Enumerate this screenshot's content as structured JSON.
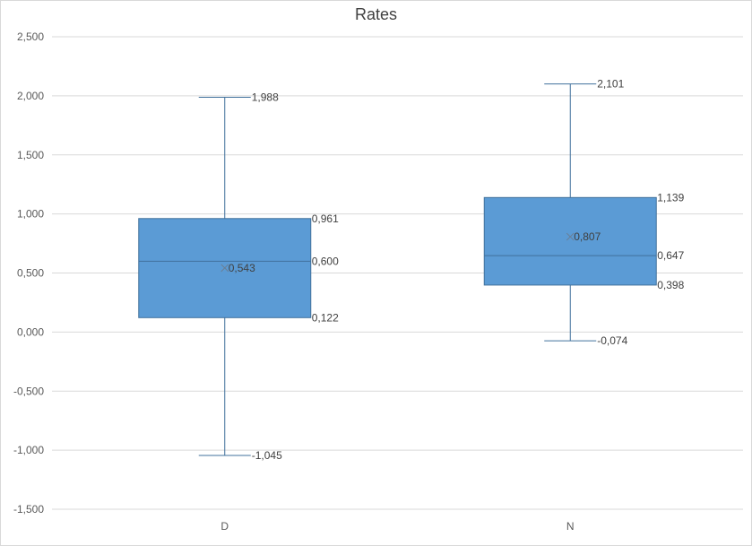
{
  "chart_data": {
    "type": "box",
    "title": "Rates",
    "xlabel": "",
    "ylabel": "",
    "ylim": [
      -1.5,
      2.5
    ],
    "ytick_step": 0.5,
    "ytick_labels": [
      "-1,500",
      "-1,000",
      "-0,500",
      "0,000",
      "0,500",
      "1,000",
      "1,500",
      "2,000",
      "2,500"
    ],
    "grid": true,
    "categories": [
      "D",
      "N"
    ],
    "boxes": [
      {
        "category": "D",
        "min": -1.045,
        "q1": 0.122,
        "median": 0.6,
        "q3": 0.961,
        "max": 1.988,
        "mean": 0.543,
        "labels": {
          "min": "-1,045",
          "q1": "0,122",
          "median": "0,600",
          "q3": "0,961",
          "max": "1,988",
          "mean": "0,543"
        }
      },
      {
        "category": "N",
        "min": -0.074,
        "q1": 0.398,
        "median": 0.647,
        "q3": 1.139,
        "max": 2.101,
        "mean": 0.807,
        "labels": {
          "min": "-0,074",
          "q1": "0,398",
          "median": "0,647",
          "q3": "1,139",
          "max": "2,101",
          "mean": "0,807"
        }
      }
    ],
    "colors": {
      "box_fill": "#5b9bd5",
      "box_stroke": "#41719c",
      "whisker": "#41719c",
      "grid": "#d9d9d9"
    }
  }
}
